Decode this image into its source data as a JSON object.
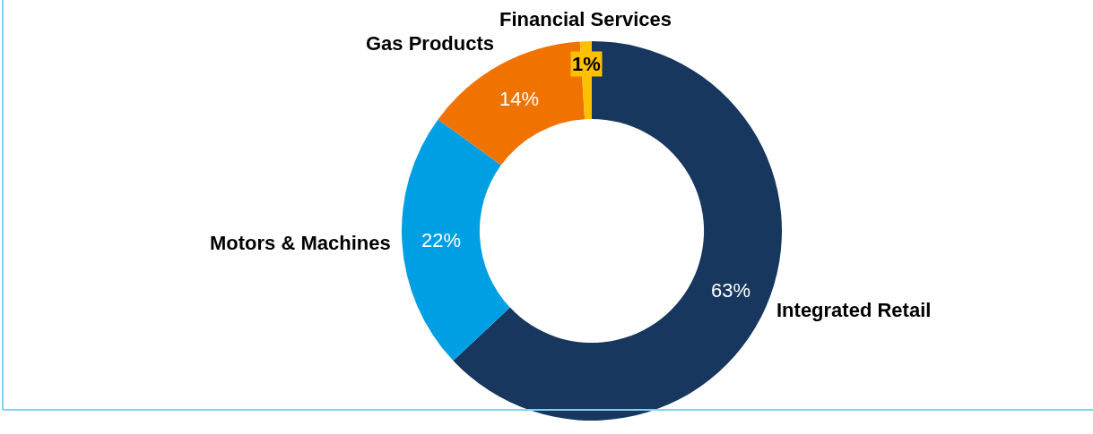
{
  "chart_data": {
    "type": "donut",
    "categories": [
      "Integrated Retail",
      "Motors & Machines",
      "Gas Products",
      "Financial Services"
    ],
    "values": [
      63,
      22,
      14,
      1
    ],
    "colors": [
      "#17375e",
      "#009fe3",
      "#f07300",
      "#ffc000"
    ],
    "value_labels": [
      "63%",
      "22%",
      "14%",
      "1%"
    ],
    "legend": false
  }
}
